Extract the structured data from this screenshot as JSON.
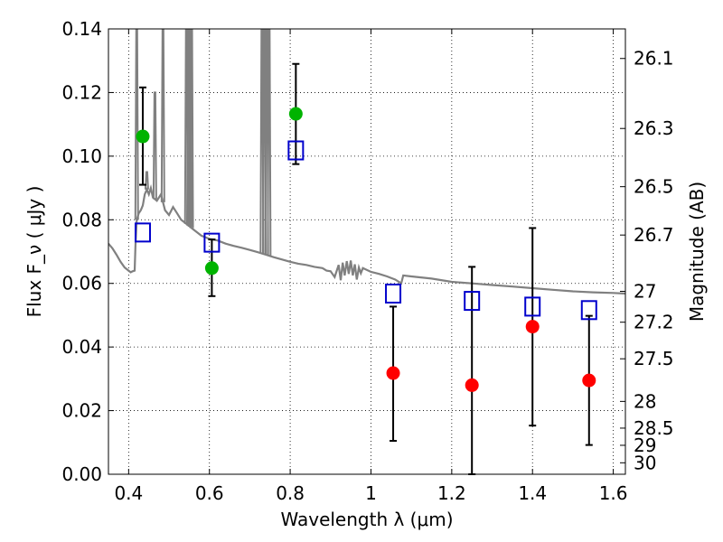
{
  "chart_data": {
    "type": "scatter",
    "xlabel": "Wavelength  λ (μm)",
    "ylabel": "Flux  F_ν  ( μJy )",
    "ylabel_right": "Magnitude (AB)",
    "xlim": [
      0.35,
      1.63
    ],
    "ylim": [
      0.0,
      0.14
    ],
    "grid": true,
    "x_ticks": [
      0.4,
      0.6,
      0.8,
      1.0,
      1.2,
      1.4,
      1.6
    ],
    "x_tick_labels": [
      "0.4",
      "0.6",
      "0.8",
      "1",
      "1.2",
      "1.4",
      "1.6"
    ],
    "y_ticks": [
      0.0,
      0.02,
      0.04,
      0.06,
      0.08,
      0.1,
      0.12,
      0.14
    ],
    "y_tick_labels": [
      "0.00",
      "0.02",
      "0.04",
      "0.06",
      "0.08",
      "0.10",
      "0.12",
      "0.14"
    ],
    "right_ticks": [
      {
        "label": "26.1",
        "flux": 0.1307
      },
      {
        "label": "26.3",
        "flux": 0.1087
      },
      {
        "label": "26.5",
        "flux": 0.0904
      },
      {
        "label": "26.7",
        "flux": 0.0752
      },
      {
        "label": "27",
        "flux": 0.0575
      },
      {
        "label": "27.2",
        "flux": 0.0478
      },
      {
        "label": "27.5",
        "flux": 0.0363
      },
      {
        "label": "28",
        "flux": 0.0229
      },
      {
        "label": "28.5",
        "flux": 0.0145
      },
      {
        "label": "29",
        "flux": 0.0091
      },
      {
        "label": "30",
        "flux": 0.0036
      }
    ],
    "series": [
      {
        "marker": "filled-circle",
        "color": "#00b300",
        "points": [
          {
            "x": 0.435,
            "y": 0.1062,
            "yerr": [
              0.091,
              0.1216
            ]
          },
          {
            "x": 0.606,
            "y": 0.0648,
            "yerr": [
              0.056,
              0.0738
            ]
          },
          {
            "x": 0.814,
            "y": 0.1133,
            "yerr": [
              0.0975,
              0.129
            ]
          }
        ]
      },
      {
        "marker": "filled-circle",
        "color": "#ff0000",
        "points": [
          {
            "x": 1.055,
            "y": 0.0318,
            "yerr": [
              0.0105,
              0.0527
            ]
          },
          {
            "x": 1.25,
            "y": 0.028,
            "yerr": [
              0.0,
              0.0652
            ]
          },
          {
            "x": 1.4,
            "y": 0.0464,
            "yerr": [
              0.0153,
              0.0774
            ]
          },
          {
            "x": 1.54,
            "y": 0.0295,
            "yerr": [
              0.0092,
              0.0498
            ]
          }
        ]
      },
      {
        "marker": "open-square",
        "color": "#0000cc",
        "points": [
          {
            "x": 0.435,
            "y": 0.076
          },
          {
            "x": 0.606,
            "y": 0.0728
          },
          {
            "x": 0.814,
            "y": 0.1018
          },
          {
            "x": 1.055,
            "y": 0.0568
          },
          {
            "x": 1.25,
            "y": 0.0545
          },
          {
            "x": 1.4,
            "y": 0.0527
          },
          {
            "x": 1.54,
            "y": 0.0516
          }
        ]
      }
    ],
    "spectrum": {
      "color": "#808080",
      "points": [
        [
          0.35,
          0.0725
        ],
        [
          0.36,
          0.071
        ],
        [
          0.37,
          0.069
        ],
        [
          0.38,
          0.0668
        ],
        [
          0.39,
          0.065
        ],
        [
          0.4,
          0.064
        ],
        [
          0.405,
          0.0635
        ],
        [
          0.41,
          0.0638
        ],
        [
          0.415,
          0.064
        ],
        [
          0.417,
          0.072
        ],
        [
          0.42,
          0.08
        ],
        [
          0.425,
          0.082
        ],
        [
          0.43,
          0.083
        ],
        [
          0.435,
          0.0845
        ],
        [
          0.44,
          0.088
        ],
        [
          0.445,
          0.0895
        ],
        [
          0.45,
          0.088
        ],
        [
          0.455,
          0.09
        ],
        [
          0.46,
          0.087
        ],
        [
          0.47,
          0.086
        ],
        [
          0.48,
          0.088
        ],
        [
          0.49,
          0.083
        ],
        [
          0.5,
          0.0815
        ],
        [
          0.51,
          0.084
        ],
        [
          0.52,
          0.082
        ],
        [
          0.53,
          0.08
        ],
        [
          0.54,
          0.079
        ],
        [
          0.55,
          0.078
        ],
        [
          0.56,
          0.077
        ],
        [
          0.57,
          0.076
        ],
        [
          0.58,
          0.075
        ],
        [
          0.6,
          0.074
        ],
        [
          0.62,
          0.0735
        ],
        [
          0.64,
          0.0725
        ],
        [
          0.66,
          0.0718
        ],
        [
          0.68,
          0.0712
        ],
        [
          0.7,
          0.0705
        ],
        [
          0.72,
          0.0698
        ],
        [
          0.74,
          0.069
        ],
        [
          0.76,
          0.0682
        ],
        [
          0.78,
          0.0675
        ],
        [
          0.8,
          0.0668
        ],
        [
          0.82,
          0.0662
        ],
        [
          0.84,
          0.0658
        ],
        [
          0.86,
          0.0652
        ],
        [
          0.88,
          0.0648
        ],
        [
          0.89,
          0.064
        ],
        [
          0.9,
          0.0638
        ],
        [
          0.91,
          0.062
        ],
        [
          0.92,
          0.0658
        ],
        [
          0.925,
          0.061
        ],
        [
          0.93,
          0.0665
        ],
        [
          0.935,
          0.0625
        ],
        [
          0.94,
          0.067
        ],
        [
          0.945,
          0.063
        ],
        [
          0.95,
          0.0672
        ],
        [
          0.955,
          0.0625
        ],
        [
          0.96,
          0.066
        ],
        [
          0.965,
          0.0612
        ],
        [
          0.97,
          0.065
        ],
        [
          0.975,
          0.0632
        ],
        [
          0.98,
          0.0648
        ],
        [
          1.0,
          0.0636
        ],
        [
          1.02,
          0.063
        ],
        [
          1.04,
          0.0622
        ],
        [
          1.06,
          0.0612
        ],
        [
          1.075,
          0.06
        ],
        [
          1.08,
          0.0625
        ],
        [
          1.1,
          0.0622
        ],
        [
          1.15,
          0.0615
        ],
        [
          1.2,
          0.0605
        ],
        [
          1.25,
          0.06
        ],
        [
          1.3,
          0.0595
        ],
        [
          1.35,
          0.059
        ],
        [
          1.4,
          0.0585
        ],
        [
          1.45,
          0.058
        ],
        [
          1.5,
          0.0575
        ],
        [
          1.55,
          0.0572
        ],
        [
          1.6,
          0.057
        ],
        [
          1.63,
          0.0568
        ]
      ],
      "emission_lines": [
        {
          "x": 0.42,
          "peak": 0.14
        },
        {
          "x": 0.445,
          "peak": 0.095
        },
        {
          "x": 0.465,
          "peak": 0.12
        },
        {
          "x": 0.485,
          "peak": 0.14
        },
        {
          "x": 0.543,
          "peak": 0.14
        },
        {
          "x": 0.548,
          "peak": 0.14
        },
        {
          "x": 0.552,
          "peak": 0.14
        },
        {
          "x": 0.556,
          "peak": 0.14
        },
        {
          "x": 0.73,
          "peak": 0.14
        },
        {
          "x": 0.736,
          "peak": 0.14
        },
        {
          "x": 0.742,
          "peak": 0.14
        },
        {
          "x": 0.748,
          "peak": 0.14
        }
      ]
    }
  }
}
